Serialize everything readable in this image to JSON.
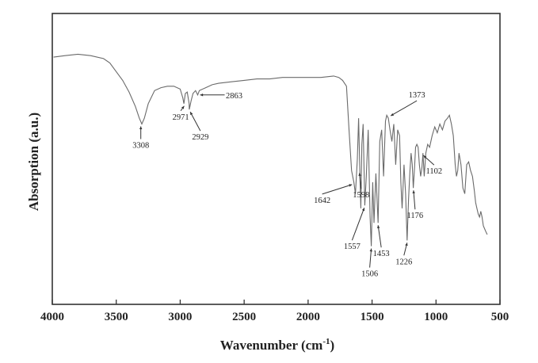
{
  "chart_data": {
    "type": "line",
    "title": "",
    "xlabel": "Wavenumber (cm",
    "xlabel_superscript": "-1",
    "xlabel_suffix": ")",
    "ylabel": "Absorption (a.u.)",
    "xlim": [
      4000,
      500
    ],
    "x_reversed": true,
    "ylim": [
      0,
      100
    ],
    "grid": false,
    "legend": "none",
    "x_ticks": [
      4000,
      3500,
      3000,
      2500,
      2000,
      1500,
      1000,
      500
    ],
    "x_tick_labels": [
      "4000",
      "3500",
      "3000",
      "2500",
      "2000",
      "1500",
      "1000",
      "500"
    ],
    "series": [
      {
        "color": "#6a6a6a",
        "x": [
          3990,
          3900,
          3800,
          3700,
          3600,
          3550,
          3500,
          3450,
          3400,
          3350,
          3320,
          3300,
          3280,
          3250,
          3200,
          3150,
          3100,
          3050,
          3000,
          2980,
          2971,
          2960,
          2945,
          2930,
          2929,
          2915,
          2900,
          2880,
          2863,
          2850,
          2800,
          2750,
          2700,
          2600,
          2500,
          2400,
          2300,
          2200,
          2100,
          2000,
          1900,
          1800,
          1760,
          1730,
          1700,
          1680,
          1660,
          1642,
          1630,
          1615,
          1605,
          1596,
          1588,
          1580,
          1570,
          1557,
          1545,
          1530,
          1515,
          1506,
          1495,
          1485,
          1470,
          1453,
          1440,
          1425,
          1410,
          1395,
          1385,
          1373,
          1360,
          1345,
          1330,
          1315,
          1300,
          1285,
          1275,
          1265,
          1250,
          1238,
          1226,
          1215,
          1205,
          1195,
          1186,
          1178,
          1168,
          1160,
          1150,
          1140,
          1130,
          1120,
          1110,
          1102,
          1092,
          1080,
          1065,
          1050,
          1030,
          1010,
          990,
          970,
          950,
          930,
          910,
          895,
          880,
          865,
          850,
          840,
          830,
          820,
          805,
          790,
          775,
          760,
          745,
          730,
          715,
          700,
          690,
          680,
          670,
          660,
          650,
          640,
          630,
          620,
          610,
          600
        ],
        "y": [
          85,
          85.5,
          86,
          85.5,
          84.5,
          83,
          80,
          77,
          73,
          68,
          64,
          62,
          64,
          69,
          73.5,
          74.5,
          75,
          75,
          74,
          71,
          69,
          72.5,
          73,
          69,
          67,
          70,
          72.5,
          73.5,
          72,
          73.5,
          74.5,
          75.5,
          76,
          76.5,
          77,
          77.5,
          77.5,
          78,
          78,
          78,
          78,
          78.5,
          78,
          77,
          75,
          60,
          46,
          42,
          38,
          50,
          64,
          46,
          33,
          55,
          62,
          34,
          44,
          60,
          30,
          20,
          42,
          28,
          45,
          28,
          56,
          60,
          44,
          63,
          65,
          64,
          60,
          56,
          62,
          48,
          60,
          58,
          42,
          33,
          48,
          38,
          22,
          36,
          45,
          52,
          48,
          40,
          47,
          54,
          55,
          54,
          48,
          44,
          47,
          52,
          44,
          52,
          55,
          54,
          58,
          61,
          59,
          62,
          60,
          63,
          64,
          65,
          62,
          58,
          48,
          44,
          46,
          52,
          48,
          40,
          38,
          48,
          49,
          46,
          44,
          39,
          35,
          33,
          31,
          30,
          32,
          30,
          27,
          26,
          25,
          24
        ]
      }
    ],
    "annotations": [
      {
        "label": "3308",
        "x": 3308
      },
      {
        "label": "2971",
        "x": 2971
      },
      {
        "label": "2929",
        "x": 2929
      },
      {
        "label": "2863",
        "x": 2863
      },
      {
        "label": "1642",
        "x": 1642
      },
      {
        "label": "1598",
        "x": 1598
      },
      {
        "label": "1557",
        "x": 1557
      },
      {
        "label": "1506",
        "x": 1506
      },
      {
        "label": "1453",
        "x": 1453
      },
      {
        "label": "1373",
        "x": 1373
      },
      {
        "label": "1226",
        "x": 1226
      },
      {
        "label": "1176",
        "x": 1176
      },
      {
        "label": "1102",
        "x": 1102
      }
    ]
  }
}
